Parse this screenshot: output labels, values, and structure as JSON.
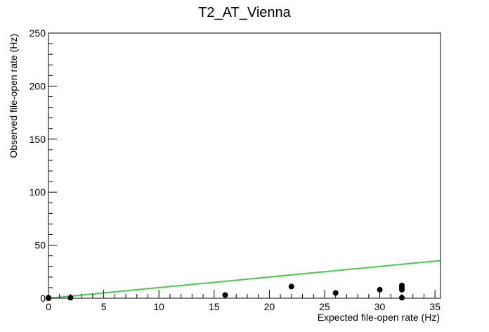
{
  "chart_data": {
    "type": "scatter",
    "title": "T2_AT_Vienna",
    "xlabel": "Expected file-open rate (Hz)",
    "ylabel": "Observed file-open rate (Hz)",
    "xlim": [
      0,
      35.5
    ],
    "ylim": [
      0,
      250
    ],
    "x_ticks": [
      0,
      5,
      10,
      15,
      20,
      25,
      30,
      35
    ],
    "y_ticks": [
      0,
      50,
      100,
      150,
      200,
      250
    ],
    "grid": false,
    "legend": "none",
    "points": [
      {
        "x": 0,
        "y": 0
      },
      {
        "x": 0,
        "y": 0.5
      },
      {
        "x": 2,
        "y": 0.5
      },
      {
        "x": 16,
        "y": 3
      },
      {
        "x": 22,
        "y": 11
      },
      {
        "x": 26,
        "y": 5
      },
      {
        "x": 30,
        "y": 8
      },
      {
        "x": 32,
        "y": 12
      },
      {
        "x": 32,
        "y": 10
      },
      {
        "x": 32,
        "y": 8
      },
      {
        "x": 32,
        "y": 0.5
      }
    ],
    "reference_line": {
      "x": [
        0,
        35.5
      ],
      "y": [
        0,
        35.5
      ],
      "color": "#4cc84c"
    },
    "marker_color": "#000000"
  }
}
